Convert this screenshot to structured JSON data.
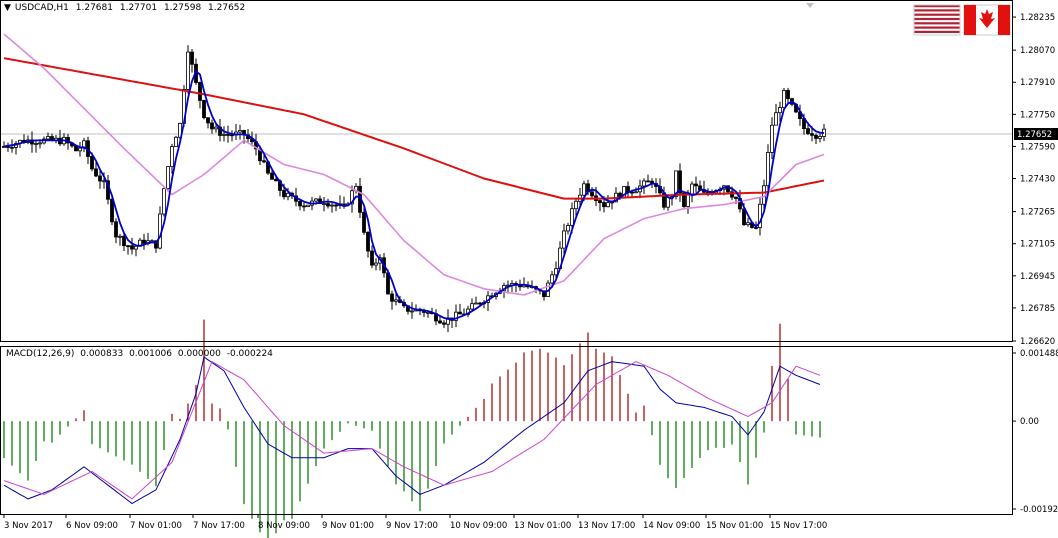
{
  "header": {
    "symbol": "USDCAD,H1",
    "open": "1.27681",
    "high": "1.27701",
    "low": "1.27598",
    "close": "1.27652"
  },
  "current_price_label": "1.27652",
  "colors": {
    "candles": "#000000",
    "ma_fast": "#0000cd",
    "ma_mid": "#dd88dd",
    "ma_slow": "#dd1010",
    "macd_line": "#0000aa",
    "signal_line": "#cc44cc",
    "hist_pos": "#aa2222",
    "hist_neg": "#228822",
    "price_line": "#c0c0c0",
    "flag_us": "#b22234",
    "flag_ca": "#e31010"
  },
  "flags": [
    "us-flag-icon",
    "canada-flag-icon"
  ],
  "macd_panel": {
    "label": "MACD(12,26,9)",
    "macd": "0.000833",
    "signal": "0.001006",
    "v3": "0.000000",
    "v4": "-0.000224"
  },
  "chart_data": {
    "type": "candlestick",
    "price_axis": {
      "ylim": [
        1.2662,
        1.2832
      ],
      "ticks": [
        "1.28235",
        "1.28070",
        "1.27910",
        "1.27750",
        "1.27590",
        "1.27430",
        "1.27265",
        "1.27105",
        "1.26945",
        "1.26785",
        "1.26620"
      ]
    },
    "macd_axis": {
      "ylim": [
        -0.00192,
        0.001488
      ],
      "ticks": [
        "0.001488",
        "0.00",
        "-0.00192"
      ]
    },
    "time_labels": [
      "3 Nov 2017",
      "6 Nov 09:00",
      "7 Nov 01:00",
      "7 Nov 17:00",
      "8 Nov 09:00",
      "9 Nov 01:00",
      "9 Nov 17:00",
      "10 Nov 09:00",
      "13 Nov 01:00",
      "13 Nov 17:00",
      "14 Nov 09:00",
      "15 Nov 01:00",
      "15 Nov 17:00"
    ],
    "price_keypoints": [
      [
        0,
        1.2759
      ],
      [
        5,
        1.2762
      ],
      [
        10,
        1.2762
      ],
      [
        15,
        1.2762
      ],
      [
        18,
        1.2757
      ],
      [
        20,
        1.276
      ],
      [
        22,
        1.2748
      ],
      [
        25,
        1.274
      ],
      [
        28,
        1.2715
      ],
      [
        32,
        1.2708
      ],
      [
        35,
        1.2712
      ],
      [
        38,
        1.271
      ],
      [
        40,
        1.2738
      ],
      [
        42,
        1.276
      ],
      [
        44,
        1.277
      ],
      [
        46,
        1.2808
      ],
      [
        48,
        1.279
      ],
      [
        50,
        1.2775
      ],
      [
        52,
        1.2768
      ],
      [
        55,
        1.2765
      ],
      [
        60,
        1.2765
      ],
      [
        63,
        1.2758
      ],
      [
        66,
        1.2745
      ],
      [
        70,
        1.2735
      ],
      [
        75,
        1.273
      ],
      [
        80,
        1.2732
      ],
      [
        85,
        1.2728
      ],
      [
        88,
        1.274
      ],
      [
        90,
        1.2715
      ],
      [
        92,
        1.2698
      ],
      [
        94,
        1.2705
      ],
      [
        96,
        1.2685
      ],
      [
        100,
        1.2678
      ],
      [
        105,
        1.2677
      ],
      [
        110,
        1.2672
      ],
      [
        115,
        1.2676
      ],
      [
        120,
        1.2683
      ],
      [
        125,
        1.269
      ],
      [
        130,
        1.269
      ],
      [
        135,
        1.2685
      ],
      [
        138,
        1.27
      ],
      [
        140,
        1.2715
      ],
      [
        143,
        1.2732
      ],
      [
        145,
        1.274
      ],
      [
        150,
        1.273
      ],
      [
        155,
        1.2737
      ],
      [
        158,
        1.2738
      ],
      [
        162,
        1.2742
      ],
      [
        165,
        1.273
      ],
      [
        167,
        1.2735
      ],
      [
        168,
        1.2745
      ],
      [
        170,
        1.2728
      ],
      [
        172,
        1.274
      ],
      [
        175,
        1.2735
      ],
      [
        178,
        1.2738
      ],
      [
        180,
        1.274
      ],
      [
        183,
        1.2733
      ],
      [
        185,
        1.272
      ],
      [
        188,
        1.2718
      ],
      [
        190,
        1.274
      ],
      [
        192,
        1.277
      ],
      [
        195,
        1.2785
      ],
      [
        198,
        1.2775
      ],
      [
        200,
        1.2768
      ],
      [
        203,
        1.2765
      ],
      [
        205,
        1.2766
      ]
    ],
    "ma_slow_keypoints": [
      [
        0,
        1.2803
      ],
      [
        25,
        1.2794
      ],
      [
        50,
        1.2785
      ],
      [
        75,
        1.2775
      ],
      [
        100,
        1.2758
      ],
      [
        120,
        1.2743
      ],
      [
        140,
        1.2733
      ],
      [
        150,
        1.2733
      ],
      [
        170,
        1.2735
      ],
      [
        190,
        1.2736
      ],
      [
        205,
        1.2742
      ]
    ],
    "ma_mid_keypoints": [
      [
        0,
        1.2815
      ],
      [
        10,
        1.2798
      ],
      [
        20,
        1.2778
      ],
      [
        30,
        1.2758
      ],
      [
        42,
        1.2735
      ],
      [
        50,
        1.2745
      ],
      [
        60,
        1.2762
      ],
      [
        70,
        1.275
      ],
      [
        80,
        1.2745
      ],
      [
        90,
        1.2735
      ],
      [
        100,
        1.2712
      ],
      [
        110,
        1.2695
      ],
      [
        120,
        1.2688
      ],
      [
        130,
        1.2685
      ],
      [
        140,
        1.2692
      ],
      [
        150,
        1.2713
      ],
      [
        160,
        1.2723
      ],
      [
        170,
        1.2728
      ],
      [
        180,
        1.273
      ],
      [
        190,
        1.2734
      ],
      [
        198,
        1.275
      ],
      [
        205,
        1.2755
      ]
    ],
    "macd_keypoints": [
      [
        0,
        -0.0014
      ],
      [
        6,
        -0.0017
      ],
      [
        12,
        -0.0015
      ],
      [
        20,
        -0.001
      ],
      [
        26,
        -0.0014
      ],
      [
        32,
        -0.0018
      ],
      [
        38,
        -0.0015
      ],
      [
        44,
        -0.0004
      ],
      [
        48,
        0.0006
      ],
      [
        50,
        0.0014
      ],
      [
        55,
        0.0011
      ],
      [
        60,
        0.0003
      ],
      [
        66,
        -0.0005
      ],
      [
        72,
        -0.0008
      ],
      [
        80,
        -0.0008
      ],
      [
        86,
        -0.0006
      ],
      [
        92,
        -0.0006
      ],
      [
        98,
        -0.0012
      ],
      [
        104,
        -0.0016
      ],
      [
        110,
        -0.0014
      ],
      [
        120,
        -0.0009
      ],
      [
        130,
        -0.0002
      ],
      [
        140,
        0.0004
      ],
      [
        146,
        0.0011
      ],
      [
        152,
        0.0013
      ],
      [
        160,
        0.0012
      ],
      [
        164,
        0.0007
      ],
      [
        168,
        0.0004
      ],
      [
        175,
        0.0003
      ],
      [
        182,
        0.0001
      ],
      [
        186,
        -0.0003
      ],
      [
        190,
        0.0002
      ],
      [
        194,
        0.0012
      ],
      [
        198,
        0.001
      ],
      [
        204,
        0.0008
      ]
    ],
    "signal_keypoints": [
      [
        0,
        -0.0013
      ],
      [
        10,
        -0.0016
      ],
      [
        22,
        -0.0011
      ],
      [
        32,
        -0.0017
      ],
      [
        42,
        -0.0009
      ],
      [
        52,
        0.0013
      ],
      [
        60,
        0.0009
      ],
      [
        70,
        -0.0001
      ],
      [
        80,
        -0.0007
      ],
      [
        92,
        -0.0006
      ],
      [
        100,
        -0.001
      ],
      [
        110,
        -0.0014
      ],
      [
        122,
        -0.0011
      ],
      [
        135,
        -0.0004
      ],
      [
        148,
        0.0008
      ],
      [
        158,
        0.0013
      ],
      [
        166,
        0.001
      ],
      [
        176,
        0.0005
      ],
      [
        186,
        0.0001
      ],
      [
        192,
        0.0004
      ],
      [
        198,
        0.0012
      ],
      [
        204,
        0.001
      ]
    ]
  }
}
